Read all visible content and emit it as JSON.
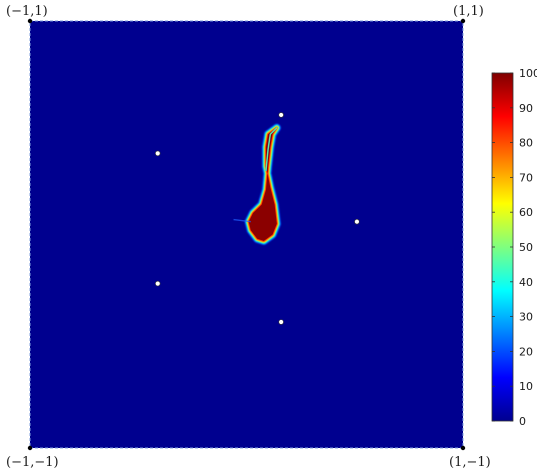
{
  "chart_data": {
    "type": "heatmap",
    "domain": {
      "xlim": [
        -1,
        1
      ],
      "ylim": [
        -1,
        1
      ]
    },
    "corner_labels": {
      "top_left": "(−1,1)",
      "top_right": "(1,1)",
      "bottom_left": "(−1,−1)",
      "bottom_right": "(1,−1)"
    },
    "corner_points": [
      [
        -1,
        1
      ],
      [
        1,
        1
      ],
      [
        -1,
        -1
      ],
      [
        1,
        -1
      ]
    ],
    "source_points": [
      [
        0.16,
        0.56
      ],
      [
        -0.41,
        0.38
      ],
      [
        0.51,
        0.06
      ],
      [
        -0.41,
        -0.23
      ],
      [
        0.16,
        -0.41
      ]
    ],
    "hot_region": {
      "value": 100,
      "outline": [
        [
          0.14,
          0.5
        ],
        [
          0.1,
          0.47
        ],
        [
          0.09,
          0.41
        ],
        [
          0.09,
          0.32
        ],
        [
          0.11,
          0.22
        ],
        [
          0.13,
          0.14
        ],
        [
          0.14,
          0.05
        ],
        [
          0.12,
          0.0
        ],
        [
          0.08,
          -0.03
        ],
        [
          0.05,
          -0.02
        ],
        [
          0.02,
          0.02
        ],
        [
          0.01,
          0.06
        ],
        [
          0.03,
          0.1
        ],
        [
          0.07,
          0.14
        ],
        [
          0.09,
          0.21
        ],
        [
          0.1,
          0.32
        ],
        [
          0.11,
          0.41
        ],
        [
          0.12,
          0.47
        ]
      ],
      "thin_tail": [
        [
          0.14,
          0.5
        ],
        [
          0.11,
          0.47
        ],
        [
          0.1,
          0.4
        ],
        [
          0.09,
          0.3
        ]
      ],
      "left_streak": [
        [
          -0.06,
          0.07
        ],
        [
          0.02,
          0.06
        ]
      ]
    },
    "colorbar": {
      "colormap": "jet",
      "min": 0,
      "max": 100,
      "ticks": [
        0,
        10,
        20,
        30,
        40,
        50,
        60,
        70,
        80,
        90,
        100
      ],
      "tick_labels": [
        "0",
        "10",
        "20",
        "30",
        "40",
        "50",
        "60",
        "70",
        "80",
        "90",
        "100"
      ]
    },
    "colors": {
      "background_field": "#00008f",
      "hot": "#8b0000",
      "boundary": "#7f9fdf",
      "point": "#ffffff"
    }
  }
}
